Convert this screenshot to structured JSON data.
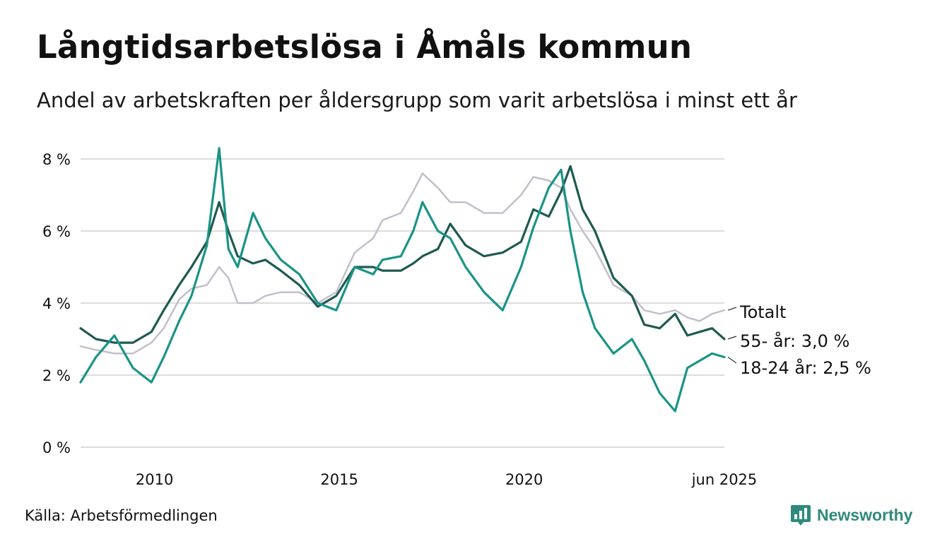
{
  "header": {
    "title": "Långtidsarbetslösa i Åmåls kommun",
    "subtitle": "Andel av arbetskraften per åldersgrupp som varit arbetslösa i minst ett år"
  },
  "footer": {
    "source": "Källa: Arbetsförmedlingen",
    "brand": "Newsworthy",
    "brand_color": "#2f8a7c"
  },
  "chart_data": {
    "type": "line",
    "title": "Långtidsarbetslösa i Åmåls kommun",
    "subtitle": "Andel av arbetskraften per åldersgrupp som varit arbetslösa i minst ett år",
    "x_range": [
      "2008-01",
      "2025-06"
    ],
    "x_ticks": [
      {
        "date": "2010-01",
        "label": "2010"
      },
      {
        "date": "2015-01",
        "label": "2015"
      },
      {
        "date": "2020-01",
        "label": "2020"
      },
      {
        "date": "2025-06",
        "label": "jun 2025"
      }
    ],
    "ylim": [
      0,
      8.3
    ],
    "y_ticks": [
      {
        "value": 0,
        "label": "0 %"
      },
      {
        "value": 2,
        "label": "2 %"
      },
      {
        "value": 4,
        "label": "4 %"
      },
      {
        "value": 6,
        "label": "6 %"
      },
      {
        "value": 8,
        "label": "8 %"
      }
    ],
    "grid": "horizontal",
    "legend": "direct labels at line ends",
    "series": [
      {
        "name": "Totalt",
        "end_label": "Totalt",
        "color": "#c2bfcb",
        "points": [
          [
            "2008-01",
            2.8
          ],
          [
            "2008-06",
            2.7
          ],
          [
            "2008-12",
            2.6
          ],
          [
            "2009-06",
            2.6
          ],
          [
            "2009-12",
            2.9
          ],
          [
            "2010-04",
            3.3
          ],
          [
            "2010-09",
            4.1
          ],
          [
            "2011-01",
            4.4
          ],
          [
            "2011-06",
            4.5
          ],
          [
            "2011-10",
            5.0
          ],
          [
            "2012-01",
            4.7
          ],
          [
            "2012-04",
            4.0
          ],
          [
            "2012-09",
            4.0
          ],
          [
            "2013-01",
            4.2
          ],
          [
            "2013-06",
            4.3
          ],
          [
            "2013-12",
            4.3
          ],
          [
            "2014-06",
            4.0
          ],
          [
            "2014-12",
            4.3
          ],
          [
            "2015-06",
            5.4
          ],
          [
            "2015-12",
            5.8
          ],
          [
            "2016-03",
            6.3
          ],
          [
            "2016-09",
            6.5
          ],
          [
            "2017-01",
            7.1
          ],
          [
            "2017-04",
            7.6
          ],
          [
            "2017-09",
            7.2
          ],
          [
            "2018-01",
            6.8
          ],
          [
            "2018-06",
            6.8
          ],
          [
            "2018-12",
            6.5
          ],
          [
            "2019-06",
            6.5
          ],
          [
            "2019-12",
            7.0
          ],
          [
            "2020-04",
            7.5
          ],
          [
            "2020-09",
            7.4
          ],
          [
            "2021-01",
            7.2
          ],
          [
            "2021-04",
            6.6
          ],
          [
            "2021-08",
            6.0
          ],
          [
            "2021-12",
            5.5
          ],
          [
            "2022-06",
            4.5
          ],
          [
            "2022-12",
            4.2
          ],
          [
            "2023-04",
            3.8
          ],
          [
            "2023-09",
            3.7
          ],
          [
            "2024-02",
            3.8
          ],
          [
            "2024-06",
            3.6
          ],
          [
            "2024-10",
            3.5
          ],
          [
            "2025-02",
            3.7
          ],
          [
            "2025-06",
            3.8
          ]
        ]
      },
      {
        "name": "55- år: 3,0 %",
        "end_label": "55- år: 3,0 %",
        "color": "#1e5a50",
        "points": [
          [
            "2008-01",
            3.3
          ],
          [
            "2008-06",
            3.0
          ],
          [
            "2008-12",
            2.9
          ],
          [
            "2009-06",
            2.9
          ],
          [
            "2009-12",
            3.2
          ],
          [
            "2010-04",
            3.8
          ],
          [
            "2010-09",
            4.5
          ],
          [
            "2011-01",
            5.0
          ],
          [
            "2011-06",
            5.7
          ],
          [
            "2011-10",
            6.8
          ],
          [
            "2012-01",
            6.0
          ],
          [
            "2012-04",
            5.3
          ],
          [
            "2012-09",
            5.1
          ],
          [
            "2013-01",
            5.2
          ],
          [
            "2013-06",
            4.9
          ],
          [
            "2013-12",
            4.5
          ],
          [
            "2014-06",
            3.9
          ],
          [
            "2014-12",
            4.2
          ],
          [
            "2015-06",
            5.0
          ],
          [
            "2015-12",
            5.0
          ],
          [
            "2016-03",
            4.9
          ],
          [
            "2016-09",
            4.9
          ],
          [
            "2017-01",
            5.1
          ],
          [
            "2017-04",
            5.3
          ],
          [
            "2017-09",
            5.5
          ],
          [
            "2018-01",
            6.2
          ],
          [
            "2018-06",
            5.6
          ],
          [
            "2018-12",
            5.3
          ],
          [
            "2019-06",
            5.4
          ],
          [
            "2019-12",
            5.7
          ],
          [
            "2020-04",
            6.6
          ],
          [
            "2020-09",
            6.4
          ],
          [
            "2021-01",
            7.1
          ],
          [
            "2021-04",
            7.8
          ],
          [
            "2021-08",
            6.6
          ],
          [
            "2021-12",
            6.0
          ],
          [
            "2022-06",
            4.7
          ],
          [
            "2022-12",
            4.2
          ],
          [
            "2023-04",
            3.4
          ],
          [
            "2023-09",
            3.3
          ],
          [
            "2024-02",
            3.7
          ],
          [
            "2024-06",
            3.1
          ],
          [
            "2024-10",
            3.2
          ],
          [
            "2025-02",
            3.3
          ],
          [
            "2025-06",
            3.0
          ]
        ]
      },
      {
        "name": "18-24 år: 2,5 %",
        "end_label": "18-24 år: 2,5 %",
        "color": "#1a9486",
        "points": [
          [
            "2008-01",
            1.8
          ],
          [
            "2008-06",
            2.5
          ],
          [
            "2008-12",
            3.1
          ],
          [
            "2009-06",
            2.2
          ],
          [
            "2009-12",
            1.8
          ],
          [
            "2010-04",
            2.5
          ],
          [
            "2010-09",
            3.5
          ],
          [
            "2011-01",
            4.2
          ],
          [
            "2011-06",
            5.6
          ],
          [
            "2011-10",
            8.3
          ],
          [
            "2012-01",
            5.5
          ],
          [
            "2012-04",
            5.0
          ],
          [
            "2012-09",
            6.5
          ],
          [
            "2013-01",
            5.8
          ],
          [
            "2013-06",
            5.2
          ],
          [
            "2013-12",
            4.8
          ],
          [
            "2014-06",
            4.0
          ],
          [
            "2014-12",
            3.8
          ],
          [
            "2015-06",
            5.0
          ],
          [
            "2015-12",
            4.8
          ],
          [
            "2016-03",
            5.2
          ],
          [
            "2016-09",
            5.3
          ],
          [
            "2017-01",
            6.0
          ],
          [
            "2017-04",
            6.8
          ],
          [
            "2017-09",
            6.0
          ],
          [
            "2018-01",
            5.8
          ],
          [
            "2018-06",
            5.0
          ],
          [
            "2018-12",
            4.3
          ],
          [
            "2019-06",
            3.8
          ],
          [
            "2019-12",
            5.0
          ],
          [
            "2020-04",
            6.1
          ],
          [
            "2020-09",
            7.2
          ],
          [
            "2021-01",
            7.7
          ],
          [
            "2021-04",
            6.0
          ],
          [
            "2021-08",
            4.3
          ],
          [
            "2021-12",
            3.3
          ],
          [
            "2022-06",
            2.6
          ],
          [
            "2022-12",
            3.0
          ],
          [
            "2023-04",
            2.4
          ],
          [
            "2023-09",
            1.5
          ],
          [
            "2024-02",
            1.0
          ],
          [
            "2024-06",
            2.2
          ],
          [
            "2024-10",
            2.4
          ],
          [
            "2025-02",
            2.6
          ],
          [
            "2025-06",
            2.5
          ]
        ]
      }
    ]
  }
}
